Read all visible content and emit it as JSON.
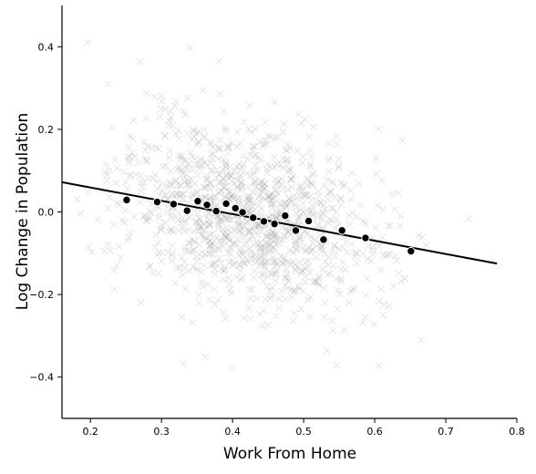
{
  "chart_data": {
    "type": "scatter",
    "title": "",
    "xlabel": "Work From Home",
    "ylabel": "Log Change in Population",
    "xlim": [
      0.16,
      0.8
    ],
    "ylim": [
      -0.5,
      0.5
    ],
    "x_ticks": [
      0.2,
      0.3,
      0.4,
      0.5,
      0.6,
      0.7,
      0.8
    ],
    "y_ticks": [
      -0.4,
      -0.2,
      0.0,
      0.2,
      0.4
    ],
    "x_tick_labels": [
      "0.2",
      "0.3",
      "0.4",
      "0.5",
      "0.6",
      "0.7",
      "0.8"
    ],
    "y_tick_labels": [
      "−0.4",
      "−0.2",
      "0.0",
      "0.2",
      "0.4"
    ],
    "grid": false,
    "colors": {
      "raw_points": "#9a9a9a",
      "binned_points": "#000000",
      "binned_edge": "#ffffff",
      "fit_line": "#000000",
      "axes": "#000000"
    },
    "series": [
      {
        "kind": "raw-scatter",
        "marker": "x",
        "cloud": {
          "count": 1200,
          "x_center": 0.42,
          "x_sd": 0.095,
          "x_range": [
            0.18,
            0.76
          ],
          "slope": -0.31,
          "intercept": 0.12,
          "residual_sd": 0.11,
          "y_range": [
            -0.47,
            0.46
          ],
          "seed": 7
        }
      },
      {
        "kind": "binned-means",
        "marker": "circle",
        "x": [
          0.251,
          0.294,
          0.317,
          0.336,
          0.351,
          0.364,
          0.377,
          0.391,
          0.404,
          0.414,
          0.429,
          0.444,
          0.459,
          0.474,
          0.489,
          0.507,
          0.528,
          0.554,
          0.587,
          0.651
        ],
        "y": [
          0.029,
          0.024,
          0.019,
          0.003,
          0.026,
          0.017,
          0.002,
          0.02,
          0.009,
          -0.001,
          -0.014,
          -0.023,
          -0.029,
          -0.009,
          -0.045,
          -0.022,
          -0.067,
          -0.045,
          -0.063,
          -0.095
        ]
      },
      {
        "kind": "fit-line",
        "x": [
          0.16,
          0.772
        ],
        "y": [
          0.072,
          -0.125
        ]
      }
    ]
  }
}
